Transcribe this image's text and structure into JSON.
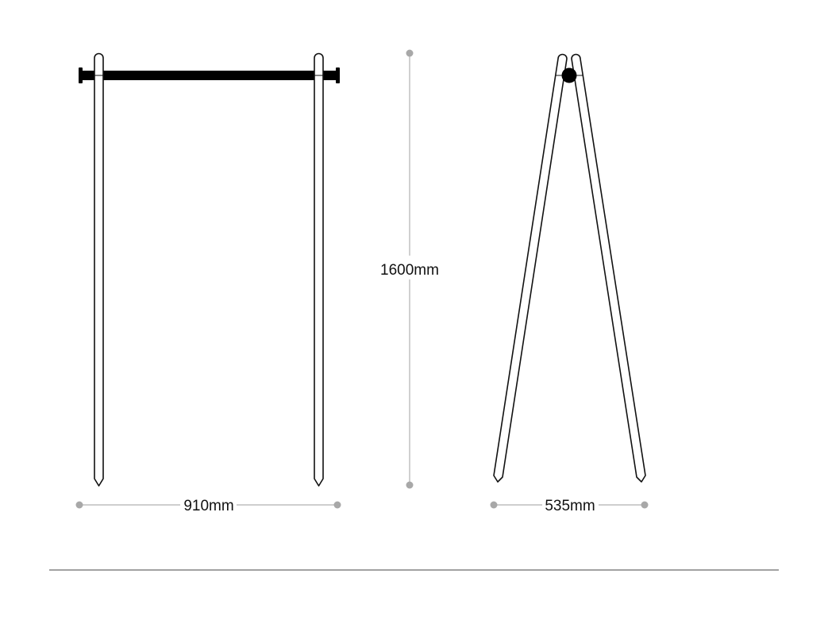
{
  "dimensions": {
    "width_label": "910mm",
    "height_label": "1600mm",
    "depth_label": "535mm"
  },
  "colors": {
    "outline": "#111111",
    "rail": "#000000",
    "dimension_line": "#bdbdbd",
    "dimension_dot": "#a8a8a8",
    "baseline": "#444444"
  }
}
